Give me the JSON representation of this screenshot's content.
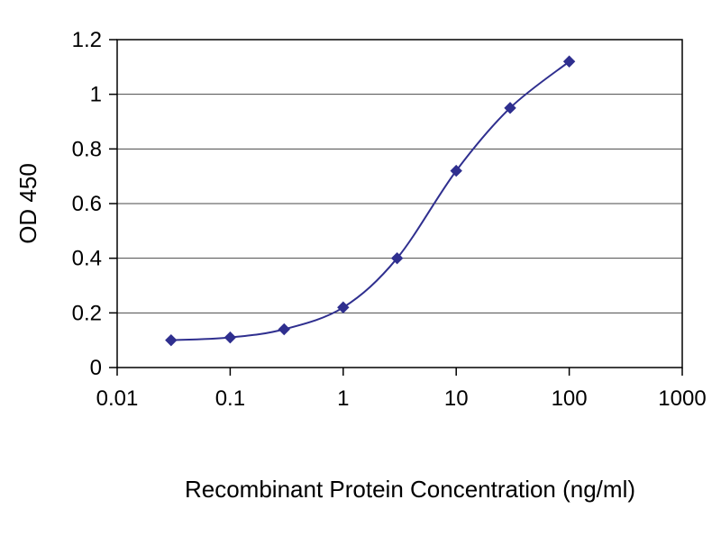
{
  "chart_data": {
    "type": "line",
    "title": "",
    "xlabel": "Recombinant Protein Concentration (ng/ml)",
    "ylabel": "OD 450",
    "x_scale": "log",
    "xlim": [
      0.01,
      1000
    ],
    "ylim": [
      0,
      1.2
    ],
    "x_ticks": [
      0.01,
      0.1,
      1,
      10,
      100,
      1000
    ],
    "x_tick_labels": [
      "0.01",
      "0.1",
      "1",
      "10",
      "100",
      "1000"
    ],
    "y_ticks": [
      0,
      0.2,
      0.4,
      0.6,
      0.8,
      1,
      1.2
    ],
    "y_tick_labels": [
      "0",
      "0.2",
      "0.4",
      "0.6",
      "0.8",
      "1",
      "1.2"
    ],
    "grid": "horizontal",
    "legend": "none",
    "background_color": "#ffffff",
    "gridline_color": "#4a4a4a",
    "axis_color": "#000000",
    "series": [
      {
        "name": "OD 450",
        "color": "#2f2f8f",
        "marker": "diamond",
        "x": [
          0.03,
          0.1,
          0.3,
          1,
          3,
          10,
          30,
          100
        ],
        "y": [
          0.1,
          0.11,
          0.14,
          0.22,
          0.4,
          0.72,
          0.95,
          1.12
        ]
      }
    ]
  }
}
